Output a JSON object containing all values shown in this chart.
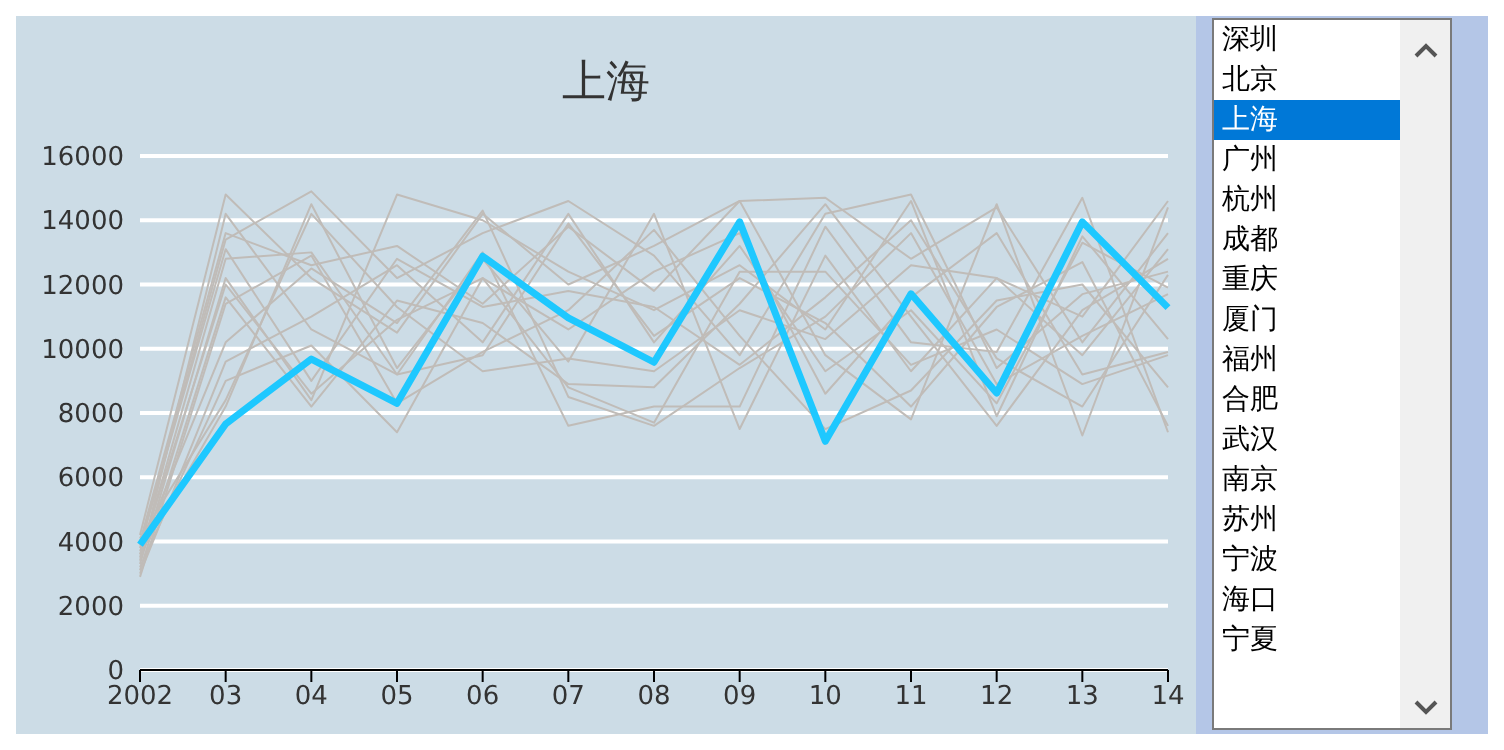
{
  "chart_data": {
    "type": "line",
    "title": "上海",
    "categories": [
      "2002",
      "03",
      "04",
      "05",
      "06",
      "07",
      "08",
      "09",
      "10",
      "11",
      "12",
      "13",
      "14"
    ],
    "ylim": [
      0,
      16000
    ],
    "yticks": [
      0,
      2000,
      4000,
      6000,
      8000,
      10000,
      12000,
      14000,
      16000
    ],
    "grid": "y",
    "marker": "none",
    "line_style": "solid",
    "annotations": [
      "深圳",
      "北京",
      "上海",
      "广州",
      "杭州",
      "成都",
      "重庆",
      "厦门",
      "福州",
      "合肥",
      "武汉",
      "南京",
      "苏州",
      "宁波",
      "海口",
      "宁夏"
    ],
    "series": [
      {
        "color": "#c0bcb8",
        "values": [
          4200,
          14800,
          12200,
          10500,
          14200,
          12000,
          13200,
          14600,
          14700,
          12800,
          14400,
          10200,
          13600
        ]
      },
      {
        "color": "#c0bcb8",
        "values": [
          3800,
          13400,
          14900,
          12200,
          13600,
          14600,
          12900,
          9800,
          14200,
          14800,
          9400,
          11700,
          12400
        ]
      },
      {
        "color": "#1ec8ff",
        "values": [
          3900,
          7660,
          9680,
          8300,
          12880,
          10960,
          9580,
          13950,
          7120,
          11710,
          8620,
          13950,
          11280
        ]
      },
      {
        "color": "#c0bcb8",
        "values": [
          3300,
          12200,
          8400,
          14800,
          14000,
          12400,
          11200,
          12600,
          10600,
          14600,
          7900,
          13500,
          10300
        ]
      },
      {
        "color": "#c0bcb8",
        "values": [
          4000,
          13600,
          12600,
          13200,
          11400,
          13800,
          11800,
          14600,
          9800,
          7800,
          14500,
          7300,
          14400
        ]
      },
      {
        "color": "#c0bcb8",
        "values": [
          3600,
          8200,
          14500,
          9400,
          12800,
          9600,
          14200,
          7500,
          12900,
          9300,
          12200,
          9800,
          13100
        ]
      },
      {
        "color": "#c0bcb8",
        "values": [
          3100,
          11600,
          8200,
          11500,
          10800,
          8900,
          8800,
          11400,
          14500,
          11000,
          7600,
          11200,
          12800
        ]
      },
      {
        "color": "#c0bcb8",
        "values": [
          3500,
          12800,
          13000,
          9200,
          9800,
          13900,
          10400,
          12200,
          10800,
          8200,
          11300,
          12700,
          7600
        ]
      },
      {
        "color": "#c0bcb8",
        "values": [
          3900,
          13100,
          9000,
          12800,
          11300,
          11800,
          11300,
          9500,
          11600,
          14000,
          9700,
          8200,
          12300
        ]
      },
      {
        "color": "#c0bcb8",
        "values": [
          3200,
          9000,
          10100,
          7400,
          12200,
          10600,
          12400,
          13600,
          8600,
          11600,
          13600,
          9200,
          9900
        ]
      },
      {
        "color": "#c0bcb8",
        "values": [
          4100,
          8400,
          14200,
          11300,
          9300,
          9700,
          9300,
          11200,
          10300,
          12600,
          12200,
          11000,
          14600
        ]
      },
      {
        "color": "#c0bcb8",
        "values": [
          3400,
          14200,
          10600,
          9200,
          13000,
          7600,
          8200,
          8200,
          13800,
          10200,
          9900,
          14700,
          7400
        ]
      },
      {
        "color": "#c0bcb8",
        "values": [
          3700,
          10200,
          12500,
          10800,
          14300,
          8500,
          7600,
          9400,
          11000,
          13600,
          8900,
          10400,
          11700
        ]
      },
      {
        "color": "#c0bcb8",
        "values": [
          2900,
          11400,
          12900,
          8300,
          9900,
          11200,
          13700,
          10400,
          7500,
          8700,
          11500,
          12000,
          8800
        ]
      },
      {
        "color": "#c0bcb8",
        "values": [
          3600,
          12000,
          8600,
          10900,
          12200,
          8800,
          7700,
          12400,
          12400,
          9500,
          10600,
          8900,
          9800
        ]
      },
      {
        "color": "#c0bcb8",
        "values": [
          3000,
          9600,
          11000,
          12600,
          10200,
          14200,
          10200,
          13200,
          9300,
          11200,
          8300,
          13300,
          11900
        ]
      }
    ]
  }
}
